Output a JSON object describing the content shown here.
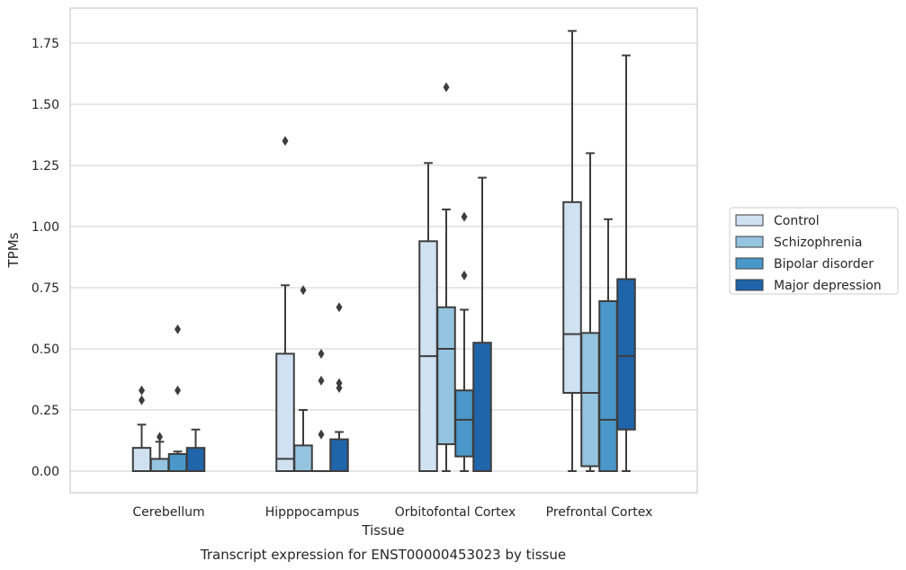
{
  "chart_data": {
    "type": "box",
    "caption": "Transcript expression for ENST00000453023 by tissue",
    "xlabel": "Tissue",
    "ylabel": "TPMs",
    "ylim": [
      -0.09,
      1.89
    ],
    "yticks": [
      "0.00",
      "0.25",
      "0.50",
      "0.75",
      "1.00",
      "1.25",
      "1.50",
      "1.75"
    ],
    "ytick_values": [
      0,
      0.25,
      0.5,
      0.75,
      1.0,
      1.25,
      1.5,
      1.75
    ],
    "categories": [
      "Cerebellum",
      "Hipppocampus",
      "Orbitofontal Cortex",
      "Prefrontal Cortex"
    ],
    "grid": "horizontal",
    "legend_position": "right",
    "series": [
      {
        "name": "Control",
        "color": "#d0e1f2",
        "boxes": [
          {
            "min": 0,
            "q1": 0,
            "median": 0,
            "q3": 0.095,
            "max": 0.19,
            "outliers": [
              0.29,
              0.33
            ]
          },
          {
            "min": 0,
            "q1": 0,
            "median": 0.05,
            "q3": 0.48,
            "max": 0.76,
            "outliers": [
              1.35
            ]
          },
          {
            "min": 0,
            "q1": 0,
            "median": 0.47,
            "q3": 0.94,
            "max": 1.26,
            "outliers": []
          },
          {
            "min": 0,
            "q1": 0.32,
            "median": 0.56,
            "q3": 1.1,
            "max": 1.8,
            "outliers": []
          }
        ]
      },
      {
        "name": "Schizophrenia",
        "color": "#94c4df",
        "boxes": [
          {
            "min": 0,
            "q1": 0,
            "median": 0,
            "q3": 0.05,
            "max": 0.12,
            "outliers": [
              0.14
            ]
          },
          {
            "min": 0,
            "q1": 0,
            "median": 0,
            "q3": 0.105,
            "max": 0.25,
            "outliers": [
              0.74
            ]
          },
          {
            "min": 0,
            "q1": 0.11,
            "median": 0.5,
            "q3": 0.67,
            "max": 1.07,
            "outliers": [
              1.57
            ]
          },
          {
            "min": 0,
            "q1": 0.02,
            "median": 0.32,
            "q3": 0.565,
            "max": 1.3,
            "outliers": []
          }
        ]
      },
      {
        "name": "Bipolar disorder",
        "color": "#4a98c9",
        "boxes": [
          {
            "min": 0,
            "q1": 0,
            "median": 0,
            "q3": 0.07,
            "max": 0.08,
            "outliers": [
              0.33,
              0.58
            ]
          },
          {
            "min": 0,
            "q1": 0,
            "median": 0,
            "q3": 0,
            "max": 0,
            "outliers": [
              0.15,
              0.37,
              0.48
            ]
          },
          {
            "min": 0,
            "q1": 0.06,
            "median": 0.21,
            "q3": 0.33,
            "max": 0.66,
            "outliers": [
              0.8,
              1.04
            ]
          },
          {
            "min": 0,
            "q1": 0,
            "median": 0.21,
            "q3": 0.695,
            "max": 1.03,
            "outliers": []
          }
        ]
      },
      {
        "name": "Major depression",
        "color": "#2064aa",
        "boxes": [
          {
            "min": 0,
            "q1": 0,
            "median": 0,
            "q3": 0.095,
            "max": 0.17,
            "outliers": []
          },
          {
            "min": 0,
            "q1": 0,
            "median": 0,
            "q3": 0.13,
            "max": 0.16,
            "outliers": [
              0.34,
              0.36,
              0.67
            ]
          },
          {
            "min": 0,
            "q1": 0,
            "median": 0,
            "q3": 0.525,
            "max": 1.2,
            "outliers": []
          },
          {
            "min": 0,
            "q1": 0.17,
            "median": 0.47,
            "q3": 0.785,
            "max": 1.7,
            "outliers": []
          }
        ]
      }
    ]
  }
}
